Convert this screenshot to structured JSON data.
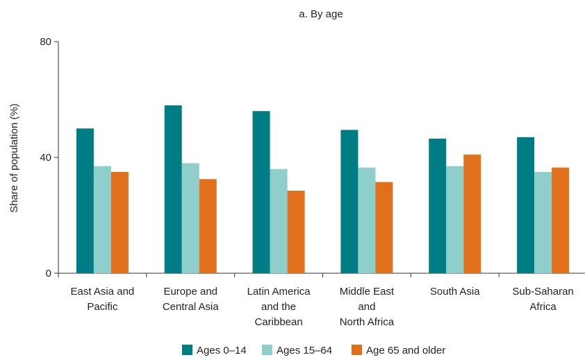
{
  "chart_data": {
    "type": "bar",
    "title": "a.  By age",
    "ylabel": "Share of population (%)",
    "xlabel": "",
    "ylim": [
      0,
      80
    ],
    "yticks": [
      0,
      40,
      80
    ],
    "grid": false,
    "legend_position": "bottom",
    "categories": [
      "East Asia and Pacific",
      "Europe and Central Asia",
      "Latin America and the Caribbean",
      "Middle East and North Africa",
      "South Asia",
      "Sub-Saharan Africa"
    ],
    "category_label_lines": [
      [
        "East Asia and",
        "Pacific"
      ],
      [
        "Europe and",
        "Central Asia"
      ],
      [
        "Latin America",
        "and the",
        "Caribbean"
      ],
      [
        "Middle East",
        "and",
        "North Africa"
      ],
      [
        "South Asia"
      ],
      [
        "Sub-Saharan",
        "Africa"
      ]
    ],
    "series": [
      {
        "name": "Ages 0–14",
        "color": "#007d84",
        "values": [
          50,
          58,
          56,
          49.5,
          46.5,
          47
        ]
      },
      {
        "name": "Ages 15–64",
        "color": "#8ecfcb",
        "values": [
          37,
          38,
          36,
          36.5,
          37,
          35
        ]
      },
      {
        "name": "Age 65 and older",
        "color": "#e0701c",
        "values": [
          35,
          32.5,
          28.5,
          31.5,
          41,
          36.5
        ]
      }
    ]
  }
}
